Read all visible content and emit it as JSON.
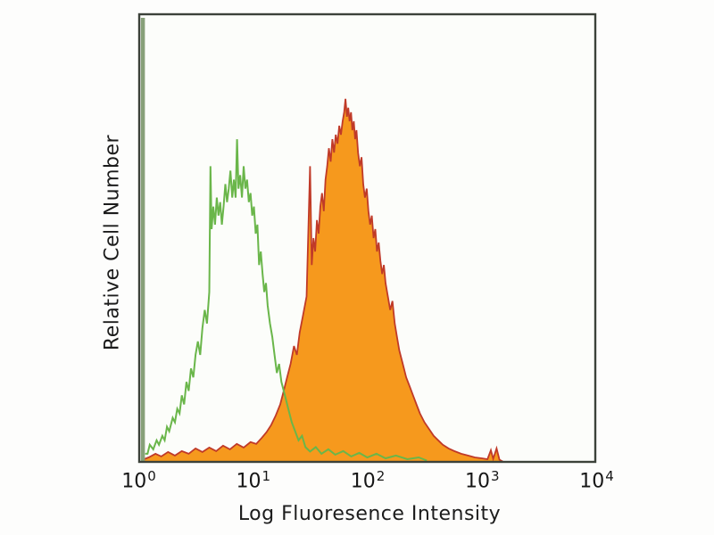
{
  "chart_data": {
    "type": "area",
    "subtype": "flow-cytometry-histogram-overlay",
    "title": "",
    "xlabel": "Log Fluoresence Intensity",
    "ylabel": "Relative Cell Number",
    "x_scale": "log10",
    "xlim_decades": [
      0,
      4
    ],
    "ylim_percent": [
      0,
      100
    ],
    "grid": false,
    "legend": "none",
    "x_ticks": [
      {
        "base": "10",
        "exp": "0"
      },
      {
        "base": "10",
        "exp": "1"
      },
      {
        "base": "10",
        "exp": "2"
      },
      {
        "base": "10",
        "exp": "3"
      },
      {
        "base": "10",
        "exp": "4"
      }
    ],
    "colors": {
      "green_trace": "#6ab64a",
      "edge_spike": "#87a078",
      "orange_fill": "#f6991d",
      "red_outline": "#c03a28",
      "plot_border": "#3c423a",
      "plot_background": "#fcfdfa",
      "text": "#1c1c1c"
    },
    "series": [
      {
        "name": "green-open-histogram",
        "style": "line",
        "color": "#6ab64a",
        "edge_spike": {
          "decade": 0.04,
          "height": 99,
          "color": "#87a078"
        },
        "points": [
          [
            0.06,
            2
          ],
          [
            0.08,
            2
          ],
          [
            0.1,
            4
          ],
          [
            0.13,
            3
          ],
          [
            0.16,
            5
          ],
          [
            0.18,
            4
          ],
          [
            0.21,
            6
          ],
          [
            0.23,
            5
          ],
          [
            0.25,
            8
          ],
          [
            0.27,
            7
          ],
          [
            0.3,
            10
          ],
          [
            0.32,
            9
          ],
          [
            0.34,
            12
          ],
          [
            0.36,
            11
          ],
          [
            0.38,
            15
          ],
          [
            0.4,
            13
          ],
          [
            0.42,
            18
          ],
          [
            0.44,
            16
          ],
          [
            0.46,
            21
          ],
          [
            0.48,
            19
          ],
          [
            0.5,
            24
          ],
          [
            0.52,
            27
          ],
          [
            0.54,
            24
          ],
          [
            0.56,
            30
          ],
          [
            0.58,
            34
          ],
          [
            0.6,
            31
          ],
          [
            0.62,
            38
          ],
          [
            0.63,
            66
          ],
          [
            0.64,
            52
          ],
          [
            0.655,
            57
          ],
          [
            0.67,
            53
          ],
          [
            0.685,
            59
          ],
          [
            0.7,
            55
          ],
          [
            0.715,
            58
          ],
          [
            0.73,
            53
          ],
          [
            0.745,
            57
          ],
          [
            0.76,
            62
          ],
          [
            0.775,
            58
          ],
          [
            0.79,
            61
          ],
          [
            0.805,
            65
          ],
          [
            0.82,
            59
          ],
          [
            0.835,
            63
          ],
          [
            0.85,
            59
          ],
          [
            0.862,
            72
          ],
          [
            0.875,
            61
          ],
          [
            0.89,
            64
          ],
          [
            0.905,
            59
          ],
          [
            0.92,
            66
          ],
          [
            0.935,
            61
          ],
          [
            0.95,
            63
          ],
          [
            0.965,
            58
          ],
          [
            0.98,
            60
          ],
          [
            0.995,
            55
          ],
          [
            1.01,
            57
          ],
          [
            1.025,
            51
          ],
          [
            1.04,
            53
          ],
          [
            1.055,
            44
          ],
          [
            1.07,
            47
          ],
          [
            1.085,
            42
          ],
          [
            1.1,
            38
          ],
          [
            1.115,
            40
          ],
          [
            1.13,
            35
          ],
          [
            1.15,
            31
          ],
          [
            1.17,
            28
          ],
          [
            1.19,
            24
          ],
          [
            1.21,
            20
          ],
          [
            1.23,
            22
          ],
          [
            1.25,
            18
          ],
          [
            1.28,
            15
          ],
          [
            1.31,
            12
          ],
          [
            1.34,
            9
          ],
          [
            1.37,
            7
          ],
          [
            1.4,
            5
          ],
          [
            1.43,
            6
          ],
          [
            1.46,
            3.5
          ],
          [
            1.5,
            2.5
          ],
          [
            1.55,
            3.5
          ],
          [
            1.6,
            2
          ],
          [
            1.66,
            3
          ],
          [
            1.72,
            1.8
          ],
          [
            1.79,
            2.6
          ],
          [
            1.86,
            1.4
          ],
          [
            1.93,
            2.2
          ],
          [
            2.0,
            1.2
          ],
          [
            2.08,
            2
          ],
          [
            2.16,
            1
          ],
          [
            2.25,
            1.6
          ],
          [
            2.35,
            0.8
          ],
          [
            2.45,
            1.2
          ],
          [
            2.52,
            0.5
          ]
        ]
      },
      {
        "name": "orange-filled-histogram",
        "style": "filled",
        "fill": "#f6991d",
        "stroke": "#c03a28",
        "points": [
          [
            0.03,
            0.6
          ],
          [
            0.09,
            1.2
          ],
          [
            0.15,
            2
          ],
          [
            0.2,
            1.4
          ],
          [
            0.26,
            2.4
          ],
          [
            0.32,
            1.6
          ],
          [
            0.38,
            2.6
          ],
          [
            0.44,
            2
          ],
          [
            0.5,
            3.2
          ],
          [
            0.56,
            2.4
          ],
          [
            0.62,
            3.4
          ],
          [
            0.68,
            2.6
          ],
          [
            0.74,
            3.8
          ],
          [
            0.8,
            3
          ],
          [
            0.86,
            4.2
          ],
          [
            0.92,
            3.4
          ],
          [
            0.98,
            4.6
          ],
          [
            1.03,
            4.2
          ],
          [
            1.08,
            5.6
          ],
          [
            1.12,
            6.8
          ],
          [
            1.16,
            8.4
          ],
          [
            1.2,
            10.5
          ],
          [
            1.24,
            13
          ],
          [
            1.27,
            16
          ],
          [
            1.3,
            19
          ],
          [
            1.33,
            22
          ],
          [
            1.36,
            26
          ],
          [
            1.385,
            24
          ],
          [
            1.41,
            29
          ],
          [
            1.44,
            33
          ],
          [
            1.47,
            37
          ],
          [
            1.5,
            66
          ],
          [
            1.515,
            44
          ],
          [
            1.53,
            50
          ],
          [
            1.545,
            47
          ],
          [
            1.56,
            54
          ],
          [
            1.575,
            51
          ],
          [
            1.59,
            57
          ],
          [
            1.605,
            60
          ],
          [
            1.62,
            56
          ],
          [
            1.635,
            63
          ],
          [
            1.65,
            66
          ],
          [
            1.665,
            70
          ],
          [
            1.68,
            67
          ],
          [
            1.695,
            72
          ],
          [
            1.71,
            69
          ],
          [
            1.725,
            73
          ],
          [
            1.74,
            71
          ],
          [
            1.755,
            75
          ],
          [
            1.77,
            73
          ],
          [
            1.785,
            76
          ],
          [
            1.798,
            78
          ],
          [
            1.81,
            81
          ],
          [
            1.822,
            77
          ],
          [
            1.834,
            79
          ],
          [
            1.846,
            76
          ],
          [
            1.858,
            78
          ],
          [
            1.87,
            74
          ],
          [
            1.882,
            76
          ],
          [
            1.894,
            72
          ],
          [
            1.906,
            74
          ],
          [
            1.92,
            69
          ],
          [
            1.935,
            66
          ],
          [
            1.95,
            68
          ],
          [
            1.965,
            62
          ],
          [
            1.98,
            59
          ],
          [
            1.995,
            61
          ],
          [
            2.01,
            56
          ],
          [
            2.025,
            53
          ],
          [
            2.04,
            55
          ],
          [
            2.055,
            50
          ],
          [
            2.07,
            52
          ],
          [
            2.085,
            47
          ],
          [
            2.1,
            49
          ],
          [
            2.115,
            45
          ],
          [
            2.13,
            42
          ],
          [
            2.145,
            44
          ],
          [
            2.16,
            40
          ],
          [
            2.18,
            37
          ],
          [
            2.2,
            34
          ],
          [
            2.22,
            36
          ],
          [
            2.24,
            31
          ],
          [
            2.26,
            28
          ],
          [
            2.28,
            25
          ],
          [
            2.31,
            22
          ],
          [
            2.34,
            19
          ],
          [
            2.37,
            17
          ],
          [
            2.4,
            15
          ],
          [
            2.43,
            13
          ],
          [
            2.46,
            11
          ],
          [
            2.5,
            9
          ],
          [
            2.54,
            7.5
          ],
          [
            2.58,
            6
          ],
          [
            2.62,
            5
          ],
          [
            2.66,
            4
          ],
          [
            2.71,
            3.2
          ],
          [
            2.76,
            2.6
          ],
          [
            2.82,
            2
          ],
          [
            2.88,
            1.6
          ],
          [
            2.94,
            1.2
          ],
          [
            3.0,
            1
          ],
          [
            3.05,
            0.8
          ],
          [
            3.08,
            2.8
          ],
          [
            3.1,
            0.9
          ],
          [
            3.13,
            3.2
          ],
          [
            3.155,
            0.7
          ],
          [
            3.19,
            0.2
          ]
        ]
      }
    ]
  }
}
